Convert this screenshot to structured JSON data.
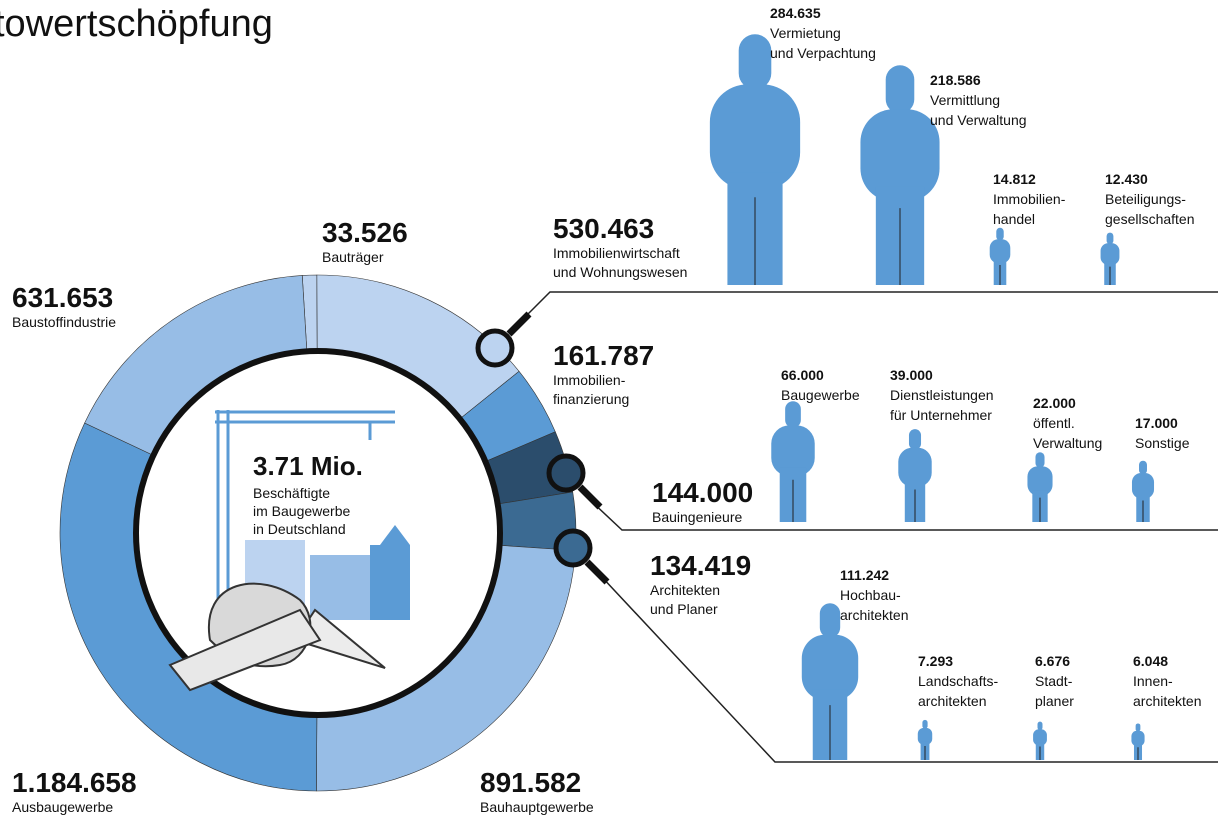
{
  "chart_data": {
    "type": "donut",
    "title": "towertschöpfung",
    "center_value": "3.71 Mio.",
    "center_label": [
      "Beschäftigte",
      "im Baugewerbe",
      "in Deutschland"
    ],
    "categories": [
      [
        "Bauträger"
      ],
      [
        "Immobilienwirtschaft",
        "und Wohnungswesen"
      ],
      [
        "Immobilien-",
        "finanzierung"
      ],
      [
        "Bauingenieure"
      ],
      [
        "Architekten",
        "und Planer"
      ],
      [
        "Bauhauptgewerbe"
      ],
      [
        "Ausbaugewerbe"
      ],
      [
        "Baustoffindustrie"
      ]
    ],
    "values": [
      33526,
      530463,
      161787,
      144000,
      134419,
      891582,
      1184658,
      631653
    ],
    "value_labels": [
      "33.526",
      "530.463",
      "161.787",
      "144.000",
      "134.419",
      "891.582",
      "1.184.658",
      "631.653"
    ],
    "colors": [
      "#bcd3f0",
      "#bcd3f0",
      "#5b9bd5",
      "#2b4d6c",
      "#3b6a92",
      "#97bde6",
      "#5b9bd5",
      "#97bde6"
    ],
    "breakdowns": [
      {
        "parent": 1,
        "items": [
          {
            "label": [
              "Vermietung",
              "und Verpachtung"
            ],
            "value": 284635,
            "value_label": "284.635"
          },
          {
            "label": [
              "Vermittlung",
              "und Verwaltung"
            ],
            "value": 218586,
            "value_label": "218.586"
          },
          {
            "label": [
              "Immobilien-",
              "handel"
            ],
            "value": 14812,
            "value_label": "14.812"
          },
          {
            "label": [
              "Beteiligungs-",
              "gesellschaften"
            ],
            "value": 12430,
            "value_label": "12.430"
          }
        ]
      },
      {
        "parent": 3,
        "items": [
          {
            "label": [
              "Baugewerbe"
            ],
            "value": 66000,
            "value_label": "66.000"
          },
          {
            "label": [
              "Dienstleistungen",
              "für Unternehmer"
            ],
            "value": 39000,
            "value_label": "39.000"
          },
          {
            "label": [
              "öffentl.",
              "Verwaltung"
            ],
            "value": 22000,
            "value_label": "22.000"
          },
          {
            "label": [
              "Sonstige"
            ],
            "value": 17000,
            "value_label": "17.000"
          }
        ]
      },
      {
        "parent": 4,
        "items": [
          {
            "label": [
              "Hochbau-",
              "architekten"
            ],
            "value": 111242,
            "value_label": "111.242"
          },
          {
            "label": [
              "Landschafts-",
              "architekten"
            ],
            "value": 7293,
            "value_label": "7.293"
          },
          {
            "label": [
              "Stadt-",
              "planer"
            ],
            "value": 6676,
            "value_label": "6.676"
          },
          {
            "label": [
              "Innen-",
              "architekten"
            ],
            "value": 6048,
            "value_label": "6.048"
          }
        ]
      }
    ]
  }
}
